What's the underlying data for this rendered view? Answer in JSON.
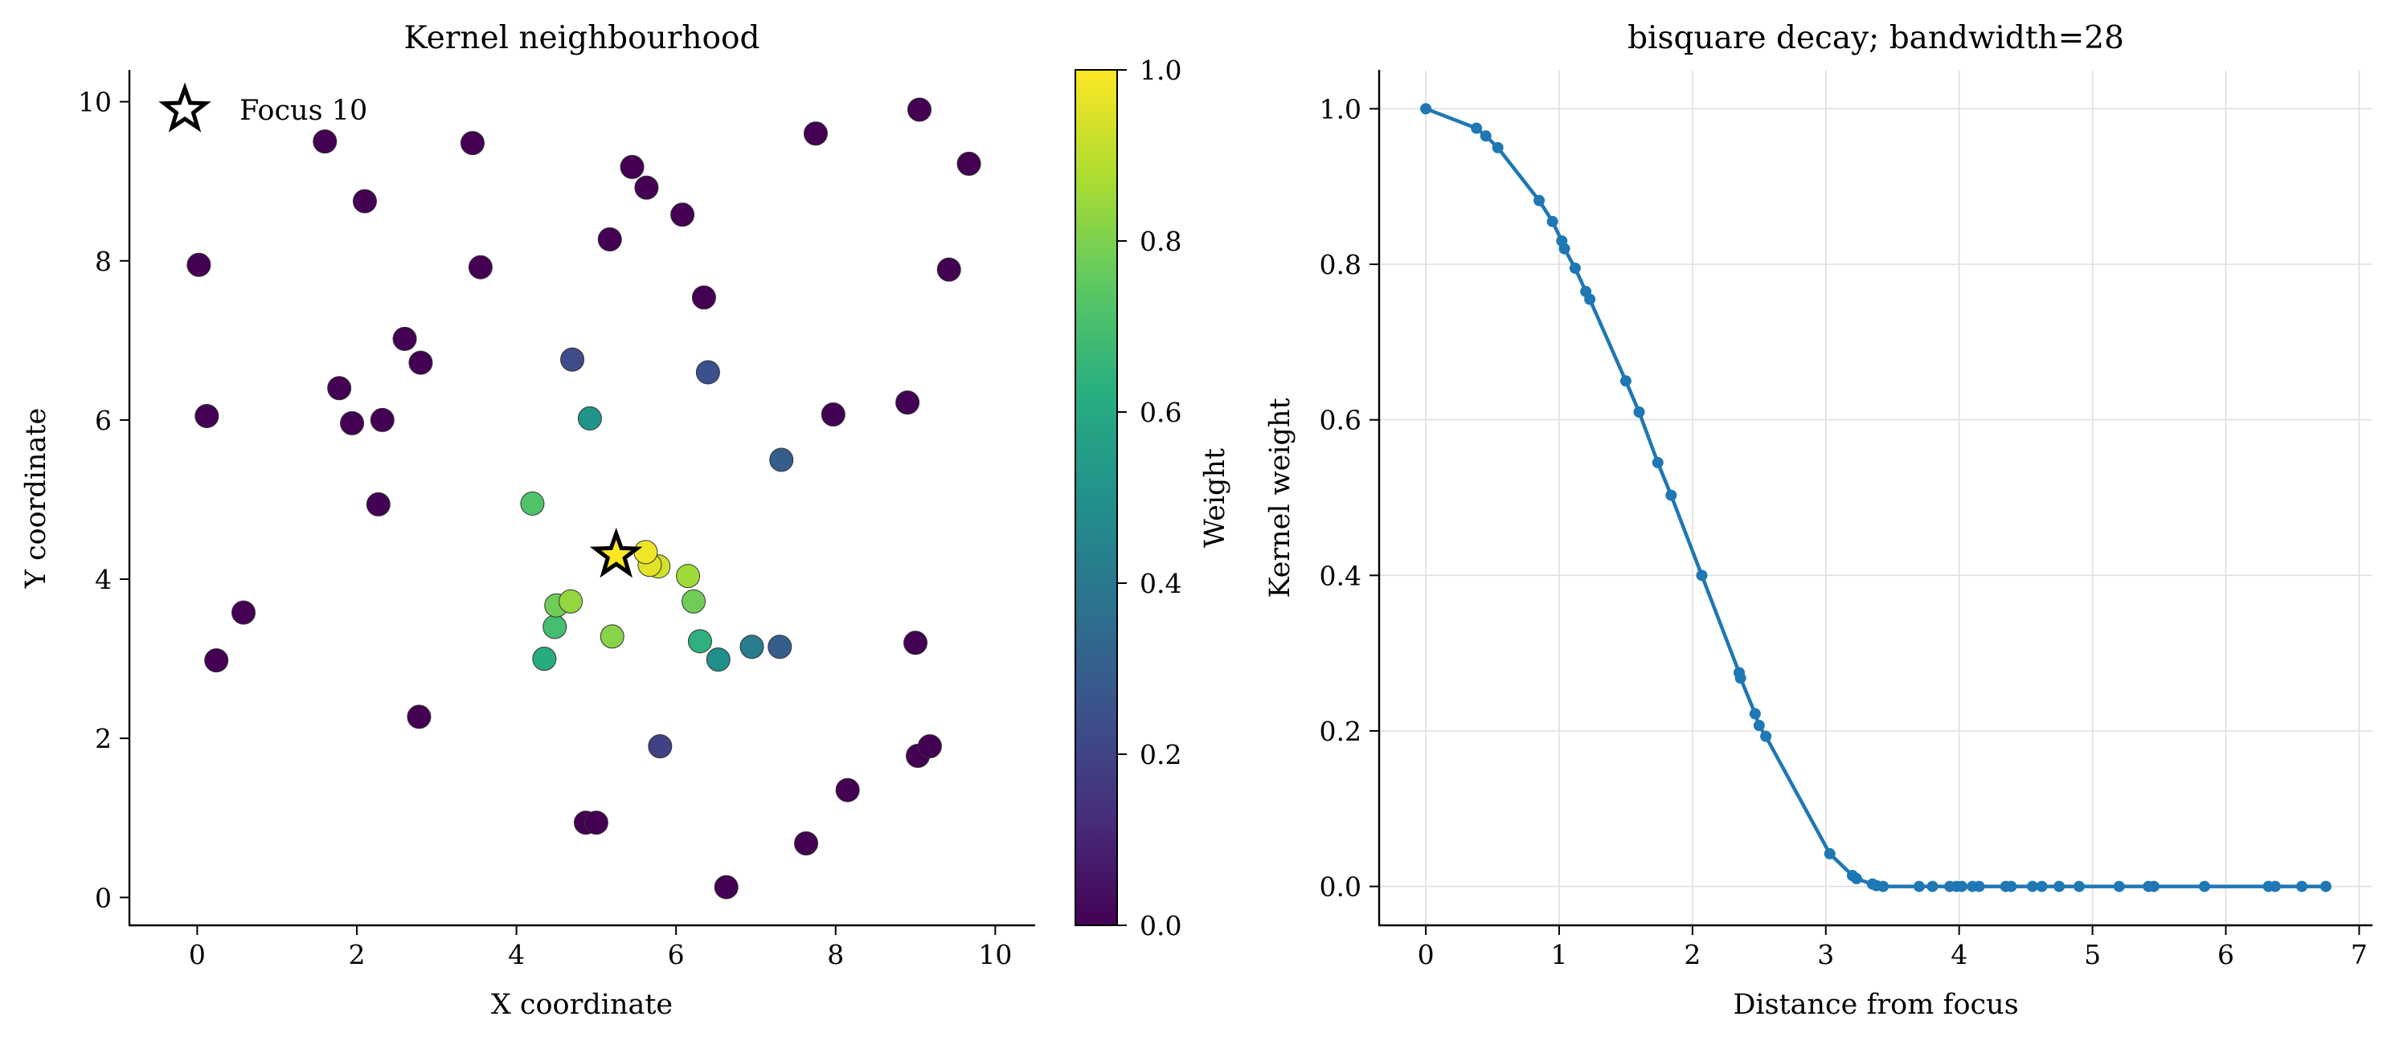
{
  "chart_data": [
    {
      "type": "scatter",
      "title": "Kernel neighbourhood",
      "xlabel": "X coordinate",
      "ylabel": "Y coordinate",
      "xlim": [
        -0.85,
        10.5
      ],
      "ylim": [
        -0.35,
        10.4
      ],
      "xticks": [
        "0",
        "2",
        "4",
        "6",
        "8",
        "10"
      ],
      "yticks": [
        "0",
        "2",
        "4",
        "6",
        "8",
        "10"
      ],
      "grid": false,
      "legend": {
        "position": "top-left",
        "entries": [
          "Focus 10"
        ]
      },
      "focus": {
        "x": 5.25,
        "y": 4.3
      },
      "colorbar": {
        "label": "Weight",
        "range": [
          0,
          1
        ],
        "ticks": [
          "0.0",
          "0.2",
          "0.4",
          "0.6",
          "0.8",
          "1.0"
        ],
        "colormap": "viridis"
      },
      "points": [
        {
          "x": 0.02,
          "y": 7.95,
          "w": 0
        },
        {
          "x": 0.12,
          "y": 6.05,
          "w": 0
        },
        {
          "x": 0.24,
          "y": 2.98,
          "w": 0
        },
        {
          "x": 0.58,
          "y": 3.58,
          "w": 0
        },
        {
          "x": 1.6,
          "y": 9.5,
          "w": 0
        },
        {
          "x": 1.78,
          "y": 6.4,
          "w": 0
        },
        {
          "x": 1.94,
          "y": 5.96,
          "w": 0
        },
        {
          "x": 2.1,
          "y": 8.75,
          "w": 0
        },
        {
          "x": 2.27,
          "y": 4.94,
          "w": 0
        },
        {
          "x": 2.32,
          "y": 6.0,
          "w": 0
        },
        {
          "x": 2.6,
          "y": 7.02,
          "w": 0
        },
        {
          "x": 2.78,
          "y": 2.27,
          "w": 0
        },
        {
          "x": 2.8,
          "y": 6.72,
          "w": 0
        },
        {
          "x": 3.45,
          "y": 9.48,
          "w": 0
        },
        {
          "x": 3.55,
          "y": 7.92,
          "w": 0
        },
        {
          "x": 4.2,
          "y": 4.95,
          "w": 0.72
        },
        {
          "x": 4.35,
          "y": 3.0,
          "w": 0.62
        },
        {
          "x": 4.48,
          "y": 3.4,
          "w": 0.7
        },
        {
          "x": 4.5,
          "y": 3.67,
          "w": 0.78
        },
        {
          "x": 4.68,
          "y": 3.72,
          "w": 0.84
        },
        {
          "x": 4.7,
          "y": 6.76,
          "w": 0.23
        },
        {
          "x": 4.87,
          "y": 0.94,
          "w": 0
        },
        {
          "x": 4.92,
          "y": 6.02,
          "w": 0.52
        },
        {
          "x": 5.0,
          "y": 0.94,
          "w": 0
        },
        {
          "x": 5.17,
          "y": 8.27,
          "w": 0
        },
        {
          "x": 5.2,
          "y": 3.28,
          "w": 0.82
        },
        {
          "x": 5.45,
          "y": 9.18,
          "w": 0
        },
        {
          "x": 5.62,
          "y": 4.34,
          "w": 0.98
        },
        {
          "x": 5.63,
          "y": 8.92,
          "w": 0
        },
        {
          "x": 5.67,
          "y": 4.18,
          "w": 0.96
        },
        {
          "x": 5.78,
          "y": 4.16,
          "w": 0.93
        },
        {
          "x": 5.8,
          "y": 1.9,
          "w": 0.2
        },
        {
          "x": 6.08,
          "y": 8.58,
          "w": 0
        },
        {
          "x": 6.15,
          "y": 4.04,
          "w": 0.86
        },
        {
          "x": 6.22,
          "y": 3.72,
          "w": 0.78
        },
        {
          "x": 6.3,
          "y": 3.22,
          "w": 0.64
        },
        {
          "x": 6.35,
          "y": 7.54,
          "w": 0
        },
        {
          "x": 6.4,
          "y": 6.6,
          "w": 0.25
        },
        {
          "x": 6.53,
          "y": 2.99,
          "w": 0.5
        },
        {
          "x": 6.63,
          "y": 0.13,
          "w": 0
        },
        {
          "x": 6.95,
          "y": 3.15,
          "w": 0.42
        },
        {
          "x": 7.3,
          "y": 3.15,
          "w": 0.3
        },
        {
          "x": 7.32,
          "y": 5.5,
          "w": 0.3
        },
        {
          "x": 7.63,
          "y": 0.68,
          "w": 0
        },
        {
          "x": 7.75,
          "y": 9.6,
          "w": 0
        },
        {
          "x": 7.97,
          "y": 6.07,
          "w": 0
        },
        {
          "x": 8.15,
          "y": 1.35,
          "w": 0
        },
        {
          "x": 8.9,
          "y": 6.22,
          "w": 0
        },
        {
          "x": 9.0,
          "y": 3.2,
          "w": 0
        },
        {
          "x": 9.03,
          "y": 1.78,
          "w": 0
        },
        {
          "x": 9.05,
          "y": 9.9,
          "w": 0
        },
        {
          "x": 9.18,
          "y": 1.9,
          "w": 0
        },
        {
          "x": 9.42,
          "y": 7.89,
          "w": 0
        },
        {
          "x": 9.67,
          "y": 9.22,
          "w": 0
        }
      ]
    },
    {
      "type": "line",
      "title": "bisquare decay; bandwidth=28",
      "xlabel": "Distance from focus",
      "ylabel": "Kernel weight",
      "xlim": [
        -0.35,
        7.1
      ],
      "ylim": [
        -0.05,
        1.05
      ],
      "xticks": [
        "0",
        "1",
        "2",
        "3",
        "4",
        "5",
        "6",
        "7"
      ],
      "yticks": [
        "0.0",
        "0.2",
        "0.4",
        "0.6",
        "0.8",
        "1.0"
      ],
      "grid": true,
      "color": "#1f77b4",
      "points": [
        {
          "x": 0,
          "y": 1.0
        },
        {
          "x": 0.38,
          "y": 0.975
        },
        {
          "x": 0.45,
          "y": 0.965
        },
        {
          "x": 0.54,
          "y": 0.95
        },
        {
          "x": 0.85,
          "y": 0.882
        },
        {
          "x": 0.95,
          "y": 0.855
        },
        {
          "x": 1.02,
          "y": 0.83
        },
        {
          "x": 1.04,
          "y": 0.82
        },
        {
          "x": 1.12,
          "y": 0.795
        },
        {
          "x": 1.2,
          "y": 0.765
        },
        {
          "x": 1.23,
          "y": 0.755
        },
        {
          "x": 1.5,
          "y": 0.65
        },
        {
          "x": 1.6,
          "y": 0.61
        },
        {
          "x": 1.74,
          "y": 0.545
        },
        {
          "x": 1.84,
          "y": 0.503
        },
        {
          "x": 2.07,
          "y": 0.4
        },
        {
          "x": 2.35,
          "y": 0.275
        },
        {
          "x": 2.36,
          "y": 0.268
        },
        {
          "x": 2.47,
          "y": 0.222
        },
        {
          "x": 2.5,
          "y": 0.207
        },
        {
          "x": 2.55,
          "y": 0.193
        },
        {
          "x": 3.03,
          "y": 0.042
        },
        {
          "x": 3.2,
          "y": 0.014
        },
        {
          "x": 3.23,
          "y": 0.01
        },
        {
          "x": 3.35,
          "y": 0.003
        },
        {
          "x": 3.38,
          "y": 0.001
        },
        {
          "x": 3.43,
          "y": 0
        },
        {
          "x": 3.7,
          "y": 0
        },
        {
          "x": 3.8,
          "y": 0
        },
        {
          "x": 3.93,
          "y": 0
        },
        {
          "x": 3.98,
          "y": 0
        },
        {
          "x": 4.02,
          "y": 0
        },
        {
          "x": 4.1,
          "y": 0
        },
        {
          "x": 4.15,
          "y": 0
        },
        {
          "x": 4.35,
          "y": 0
        },
        {
          "x": 4.39,
          "y": 0
        },
        {
          "x": 4.55,
          "y": 0
        },
        {
          "x": 4.62,
          "y": 0
        },
        {
          "x": 4.75,
          "y": 0
        },
        {
          "x": 4.9,
          "y": 0
        },
        {
          "x": 5.2,
          "y": 0
        },
        {
          "x": 5.42,
          "y": 0
        },
        {
          "x": 5.46,
          "y": 0
        },
        {
          "x": 5.84,
          "y": 0
        },
        {
          "x": 6.32,
          "y": 0
        },
        {
          "x": 6.37,
          "y": 0
        },
        {
          "x": 6.57,
          "y": 0
        },
        {
          "x": 6.75,
          "y": 0
        }
      ]
    }
  ]
}
